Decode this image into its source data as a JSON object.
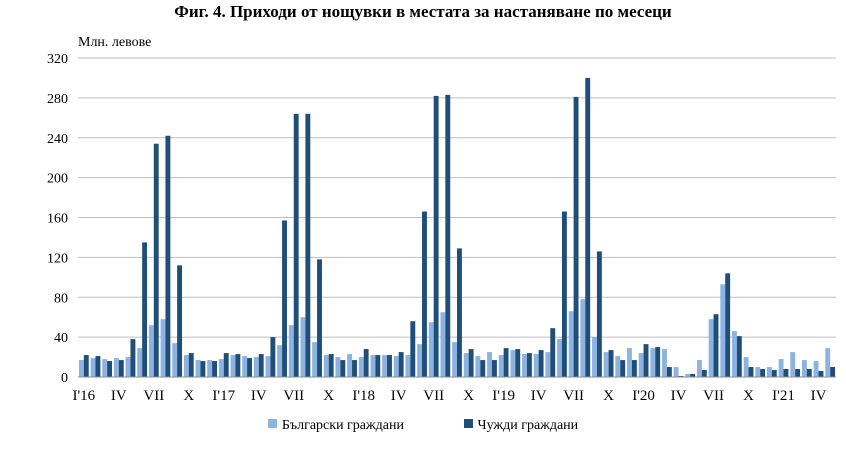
{
  "chart_data": {
    "type": "bar",
    "title": "Фиг. 4. Приходи от нощувки в местата за настаняване по месеци",
    "ylabel": "Млн. левове",
    "xlabel": "",
    "ylim": [
      0,
      320
    ],
    "yticks": [
      0,
      40,
      80,
      120,
      160,
      200,
      240,
      280,
      320
    ],
    "grid": true,
    "legend_position": "bottom",
    "x_tick_labels": [
      {
        "index": 0,
        "label": "I'16"
      },
      {
        "index": 3,
        "label": "IV"
      },
      {
        "index": 6,
        "label": "VII"
      },
      {
        "index": 9,
        "label": "X"
      },
      {
        "index": 12,
        "label": "I'17"
      },
      {
        "index": 15,
        "label": "IV"
      },
      {
        "index": 18,
        "label": "VII"
      },
      {
        "index": 21,
        "label": "X"
      },
      {
        "index": 24,
        "label": "I'18"
      },
      {
        "index": 27,
        "label": "IV"
      },
      {
        "index": 30,
        "label": "VII"
      },
      {
        "index": 33,
        "label": "X"
      },
      {
        "index": 36,
        "label": "I'19"
      },
      {
        "index": 39,
        "label": "IV"
      },
      {
        "index": 42,
        "label": "VII"
      },
      {
        "index": 45,
        "label": "X"
      },
      {
        "index": 48,
        "label": "I'20"
      },
      {
        "index": 51,
        "label": "IV"
      },
      {
        "index": 54,
        "label": "VII"
      },
      {
        "index": 57,
        "label": "X"
      },
      {
        "index": 60,
        "label": "I'21"
      },
      {
        "index": 63,
        "label": "IV"
      }
    ],
    "series": [
      {
        "name": "Български граждани",
        "color": "#8DB3E2",
        "values": [
          17,
          19,
          18,
          19,
          20,
          29,
          52,
          58,
          34,
          22,
          17,
          17,
          18,
          22,
          21,
          20,
          21,
          32,
          52,
          60,
          35,
          22,
          20,
          23,
          20,
          22,
          22,
          21,
          22,
          33,
          55,
          65,
          35,
          24,
          21,
          25,
          22,
          27,
          23,
          23,
          25,
          38,
          66,
          78,
          40,
          25,
          21,
          29,
          24,
          29,
          28,
          10,
          3,
          17,
          58,
          93,
          46,
          20,
          10,
          10,
          18,
          25,
          17,
          16,
          29
        ]
      },
      {
        "name": "Чужди граждани",
        "color": "#1F4E79",
        "values": [
          22,
          21,
          16,
          17,
          38,
          135,
          234,
          242,
          112,
          24,
          16,
          16,
          24,
          23,
          19,
          23,
          40,
          157,
          264,
          264,
          118,
          23,
          17,
          17,
          28,
          22,
          22,
          25,
          56,
          166,
          282,
          283,
          129,
          28,
          17,
          17,
          29,
          28,
          24,
          27,
          49,
          166,
          281,
          300,
          126,
          27,
          17,
          17,
          33,
          30,
          10,
          1,
          3,
          7,
          63,
          104,
          41,
          10,
          8,
          7,
          8,
          8,
          8,
          6,
          10
        ]
      }
    ]
  }
}
